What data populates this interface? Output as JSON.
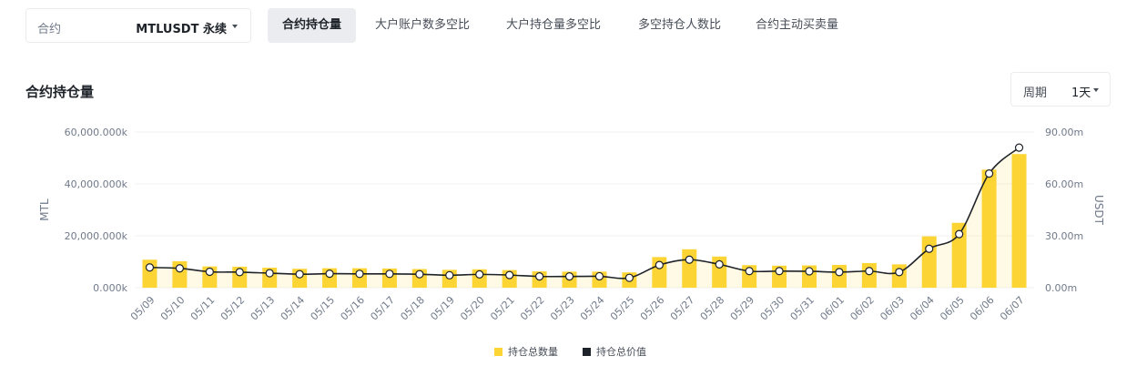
{
  "contract": {
    "label": "合约",
    "value": "MTLUSDT 永续"
  },
  "tabs": [
    {
      "label": "合约持仓量",
      "active": true
    },
    {
      "label": "大户账户数多空比",
      "active": false
    },
    {
      "label": "大户持仓量多空比",
      "active": false
    },
    {
      "label": "多空持仓人数比",
      "active": false
    },
    {
      "label": "合约主动买卖量",
      "active": false
    }
  ],
  "section_title": "合约持仓量",
  "period": {
    "label": "周期",
    "value": "1天"
  },
  "colors": {
    "bar": "#fcd535",
    "line": "#1e2329",
    "grid": "#f0f1f2",
    "text": "#707a8a"
  },
  "chart_data": {
    "type": "bar+line",
    "categories": [
      "05/09",
      "05/10",
      "05/11",
      "05/12",
      "05/13",
      "05/14",
      "05/15",
      "05/16",
      "05/17",
      "05/18",
      "05/19",
      "05/20",
      "05/21",
      "05/22",
      "05/23",
      "05/24",
      "05/25",
      "05/26",
      "05/27",
      "05/28",
      "05/29",
      "05/30",
      "05/31",
      "06/01",
      "06/02",
      "06/03",
      "06/04",
      "06/05",
      "06/06",
      "06/07"
    ],
    "series": [
      {
        "name": "持仓总数量",
        "type": "bar",
        "axis": "left",
        "values": [
          10800000,
          10200000,
          8200000,
          8100000,
          7700000,
          7300000,
          7500000,
          7500000,
          7400000,
          7200000,
          6900000,
          7100000,
          6800000,
          6300000,
          6200000,
          6200000,
          5900000,
          11800000,
          14800000,
          12000000,
          8700000,
          8500000,
          8600000,
          8800000,
          9500000,
          9000000,
          19800000,
          25000000,
          45500000,
          51500000
        ]
      },
      {
        "name": "持仓总价值",
        "type": "line",
        "axis": "right",
        "values": [
          11.7,
          11.2,
          9.2,
          9.0,
          8.4,
          7.8,
          8.1,
          8.0,
          8.0,
          7.8,
          7.2,
          7.7,
          7.3,
          6.5,
          6.5,
          6.6,
          5.7,
          13.1,
          16.2,
          13.5,
          9.6,
          9.6,
          9.5,
          9.0,
          9.6,
          9.0,
          22.5,
          31.0,
          66.0,
          81.0
        ]
      }
    ],
    "left_axis": {
      "label": "MTL",
      "ticks": [
        "0.000k",
        "20,000.000k",
        "40,000.000k",
        "60,000.000k"
      ],
      "range": [
        0,
        60000000
      ]
    },
    "right_axis": {
      "label": "USDT",
      "ticks": [
        "0.00m",
        "30.00m",
        "60.00m",
        "90.00m"
      ],
      "range": [
        0,
        90
      ]
    },
    "legend": [
      "持仓总数量",
      "持仓总价值"
    ],
    "grid": true,
    "legend_position": "bottom"
  }
}
